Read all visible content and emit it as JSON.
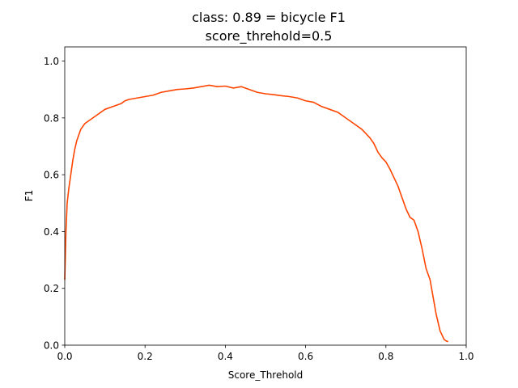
{
  "chart_data": {
    "type": "line",
    "title_line1": "class: 0.89 = bicycle F1",
    "title_line2": "score_threhold=0.5",
    "xlabel": "Score_Threhold",
    "ylabel": "F1",
    "xlim": [
      0.0,
      1.0
    ],
    "ylim": [
      0.0,
      1.05
    ],
    "x_ticks": [
      "0.0",
      "0.2",
      "0.4",
      "0.6",
      "0.8",
      "1.0"
    ],
    "y_ticks": [
      "0.0",
      "0.2",
      "0.4",
      "0.6",
      "0.8",
      "1.0"
    ],
    "grid": false,
    "series": [
      {
        "color": "#ff4500",
        "x": [
          0.0,
          0.003,
          0.006,
          0.01,
          0.015,
          0.02,
          0.025,
          0.03,
          0.035,
          0.04,
          0.045,
          0.05,
          0.06,
          0.07,
          0.08,
          0.09,
          0.1,
          0.12,
          0.14,
          0.15,
          0.16,
          0.18,
          0.2,
          0.22,
          0.24,
          0.26,
          0.28,
          0.3,
          0.32,
          0.34,
          0.36,
          0.38,
          0.4,
          0.42,
          0.44,
          0.46,
          0.48,
          0.5,
          0.52,
          0.54,
          0.56,
          0.58,
          0.6,
          0.62,
          0.64,
          0.66,
          0.68,
          0.7,
          0.72,
          0.74,
          0.75,
          0.76,
          0.77,
          0.78,
          0.79,
          0.8,
          0.81,
          0.82,
          0.83,
          0.84,
          0.85,
          0.86,
          0.87,
          0.88,
          0.89,
          0.9,
          0.91,
          0.915,
          0.92,
          0.925,
          0.93,
          0.935,
          0.94,
          0.945,
          0.95,
          0.955
        ],
        "y": [
          0.23,
          0.4,
          0.5,
          0.55,
          0.6,
          0.65,
          0.69,
          0.72,
          0.74,
          0.76,
          0.77,
          0.78,
          0.79,
          0.8,
          0.81,
          0.82,
          0.83,
          0.84,
          0.85,
          0.86,
          0.865,
          0.87,
          0.875,
          0.88,
          0.89,
          0.895,
          0.9,
          0.902,
          0.905,
          0.91,
          0.915,
          0.91,
          0.912,
          0.905,
          0.91,
          0.9,
          0.89,
          0.885,
          0.882,
          0.878,
          0.875,
          0.87,
          0.86,
          0.855,
          0.84,
          0.83,
          0.82,
          0.8,
          0.78,
          0.76,
          0.745,
          0.73,
          0.71,
          0.68,
          0.66,
          0.645,
          0.62,
          0.59,
          0.56,
          0.52,
          0.48,
          0.45,
          0.44,
          0.4,
          0.34,
          0.27,
          0.23,
          0.19,
          0.15,
          0.11,
          0.08,
          0.05,
          0.035,
          0.02,
          0.015,
          0.012
        ]
      }
    ]
  }
}
